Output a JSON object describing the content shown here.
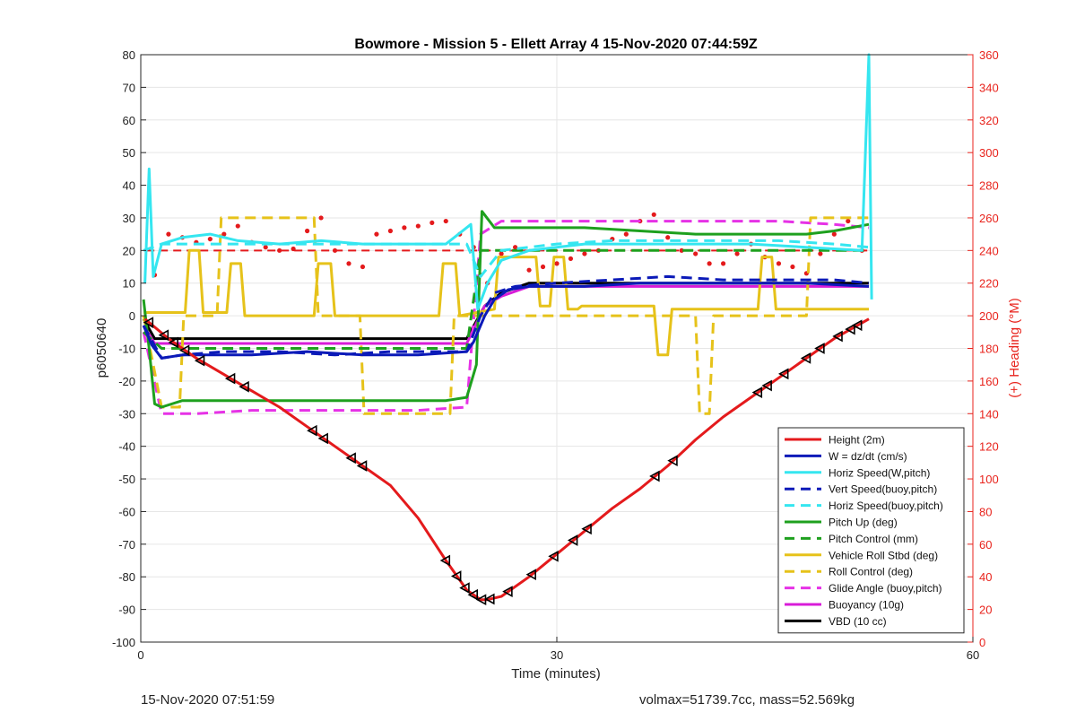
{
  "chart_data": {
    "type": "line",
    "title": "Bowmore - Mission 5 - Ellett Array 4 15-Nov-2020 07:44:59Z",
    "xlabel": "Time (minutes)",
    "ylabel": "p6050640",
    "ylabel_right": "(+) Heading (°M)",
    "xlim": [
      0,
      60
    ],
    "ylim": [
      -100,
      80
    ],
    "ylim_right": [
      0,
      360
    ],
    "xticks": [
      0,
      30,
      60
    ],
    "yticks": [
      -100,
      -90,
      -80,
      -70,
      -60,
      -50,
      -40,
      -30,
      -20,
      -10,
      0,
      10,
      20,
      30,
      40,
      50,
      60,
      70,
      80
    ],
    "yticks_right": [
      0,
      20,
      40,
      60,
      80,
      100,
      120,
      140,
      160,
      180,
      200,
      220,
      240,
      260,
      280,
      300,
      320,
      340,
      360
    ],
    "grid": true,
    "legend_position": "lower-right",
    "colors": {
      "axis_right": "#e8231c"
    },
    "series": [
      {
        "name": "Height (2m)",
        "color": "#e41a1c",
        "style": "solid",
        "x": [
          0.3,
          2,
          4,
          6,
          8,
          10,
          12,
          14,
          16,
          18,
          20,
          22,
          23.5,
          24.5,
          25,
          26,
          28,
          30,
          32,
          34,
          36,
          38,
          40,
          42,
          44,
          46,
          48,
          50,
          52.5
        ],
        "y": [
          -1,
          -7,
          -13,
          -18,
          -23,
          -28,
          -34,
          -40,
          -46,
          -52,
          -62,
          -75,
          -84,
          -87,
          -87,
          -86,
          -80,
          -73,
          -66,
          -59,
          -53,
          -46,
          -38,
          -31,
          -25,
          -19,
          -13,
          -7,
          -1
        ]
      },
      {
        "name": "W = dz/dt (cm/s)",
        "color": "#0b1ab8",
        "style": "solid",
        "x": [
          0.2,
          0.8,
          1.5,
          3,
          5,
          8,
          12,
          16,
          20,
          23.5,
          24,
          24.8,
          25.5,
          26.5,
          28,
          32,
          36,
          40,
          44,
          48,
          52.5
        ],
        "y": [
          -3,
          -9,
          -13,
          -12,
          -12,
          -12,
          -11,
          -12,
          -12,
          -11,
          -8,
          0,
          5,
          8,
          9,
          9,
          10,
          10,
          10,
          10,
          9
        ]
      },
      {
        "name": "Horiz Speed(W,pitch)",
        "color": "#35e6f0",
        "style": "solid",
        "x": [
          0.3,
          0.6,
          0.9,
          1.5,
          3,
          5,
          7,
          10,
          13,
          16,
          19,
          22,
          23.8,
          24.3,
          25,
          26,
          28,
          32,
          36,
          40,
          44,
          48,
          52,
          52.5,
          52.7
        ],
        "y": [
          10,
          45,
          12,
          22,
          24,
          25,
          23,
          22,
          23,
          22,
          22,
          22,
          28,
          2,
          10,
          17,
          20,
          22,
          22,
          22,
          22,
          21,
          20,
          80,
          5
        ]
      },
      {
        "name": "Vert Speed(buoy,pitch)",
        "color": "#0b1ab8",
        "style": "dashed",
        "x": [
          0.2,
          1.5,
          3,
          6,
          10,
          14,
          18,
          22,
          23.5,
          24.5,
          25.5,
          27,
          30,
          34,
          38,
          42,
          46,
          50,
          52.5
        ],
        "y": [
          -3,
          -13,
          -12,
          -11,
          -11,
          -12,
          -11,
          -11,
          -11,
          0,
          7,
          9,
          10,
          11,
          12,
          11,
          11,
          11,
          10
        ]
      },
      {
        "name": "Horiz Speed(buoy,pitch)",
        "color": "#35e6f0",
        "style": "dashed",
        "x": [
          0.2,
          1.5,
          4,
          8,
          12,
          16,
          20,
          23.5,
          24.5,
          26,
          30,
          34,
          38,
          42,
          46,
          50,
          52.5
        ],
        "y": [
          20,
          22,
          22,
          22,
          22,
          22,
          22,
          22,
          12,
          20,
          22,
          23,
          23,
          23,
          23,
          22,
          21
        ]
      },
      {
        "name": "Pitch Up (deg)",
        "color": "#1ea01e",
        "style": "solid",
        "x": [
          0.2,
          0.6,
          1,
          1.5,
          3,
          6,
          10,
          14,
          18,
          22,
          23.5,
          24.2,
          24.6,
          25.5,
          28,
          32,
          36,
          40,
          44,
          48,
          50,
          52.5
        ],
        "y": [
          5,
          -10,
          -27,
          -28,
          -26,
          -26,
          -26,
          -26,
          -26,
          -26,
          -25,
          -15,
          32,
          27,
          27,
          27,
          26,
          25,
          25,
          25,
          26,
          28
        ]
      },
      {
        "name": "Pitch Control (mm)",
        "color": "#1ea01e",
        "style": "dashed",
        "x": [
          0.2,
          1.5,
          5,
          10,
          15,
          20,
          23.5,
          24.5,
          30,
          40,
          52.5
        ],
        "y": [
          -5,
          -10,
          -10,
          -10,
          -10,
          -10,
          -10,
          20,
          20,
          20,
          20
        ]
      },
      {
        "name": "Vehicle Roll Stbd (deg)",
        "color": "#e6c21a",
        "style": "solid",
        "x": [
          0.2,
          3.2,
          3.5,
          4.2,
          4.5,
          6.2,
          6.5,
          7.2,
          7.5,
          12.5,
          12.8,
          13.7,
          14,
          21.5,
          21.8,
          22.7,
          23,
          25.5,
          25.8,
          28.5,
          28.8,
          29.5,
          29.8,
          30.5,
          30.8,
          31.5,
          31.8,
          37,
          37.3,
          38,
          38.3,
          44.5,
          44.8,
          45.5,
          45.8,
          52.5
        ],
        "y": [
          1,
          1,
          20,
          20,
          1,
          1,
          16,
          16,
          0,
          0,
          16,
          16,
          0,
          0,
          16,
          16,
          0,
          2,
          18,
          18,
          3,
          3,
          18,
          18,
          2,
          2,
          3,
          3,
          -12,
          -12,
          2,
          2,
          18,
          18,
          2,
          2
        ]
      },
      {
        "name": "Roll Control (deg)",
        "color": "#e6c21a",
        "style": "dashed",
        "x": [
          0.2,
          1.5,
          2.8,
          3.1,
          5.5,
          5.8,
          12.5,
          12.8,
          15.8,
          16.1,
          22.3,
          22.6,
          25.5,
          28,
          31.5,
          40,
          40.3,
          41,
          41.3,
          48,
          48.3,
          52.5
        ],
        "y": [
          0,
          -28,
          -28,
          0,
          0,
          30,
          30,
          0,
          0,
          -30,
          -30,
          0,
          0,
          0,
          0,
          0,
          -30,
          -30,
          0,
          0,
          30,
          30
        ]
      },
      {
        "name": "Glide Angle (buoy,pitch)",
        "color": "#e632e6",
        "style": "dashed",
        "x": [
          0.2,
          1.5,
          4,
          8,
          12,
          16,
          20,
          23.5,
          24.5,
          26,
          30,
          34,
          38,
          42,
          46,
          50,
          52.5
        ],
        "y": [
          -5,
          -30,
          -30,
          -29,
          -29,
          -29,
          -29,
          -28,
          25,
          29,
          29,
          29,
          29,
          29,
          29,
          28,
          27
        ]
      },
      {
        "name": "Buoyancy (10g)",
        "color": "#d81cd8",
        "style": "solid",
        "x": [
          0.2,
          1,
          5,
          10,
          15,
          20,
          23.5,
          24.8,
          26,
          28,
          40,
          52.5
        ],
        "y": [
          -3,
          -8.5,
          -8.5,
          -8.5,
          -8.5,
          -8.5,
          -8.5,
          3,
          6,
          9,
          9,
          9
        ]
      },
      {
        "name": "VBD (10 cc)",
        "color": "#000000",
        "style": "solid",
        "x": [
          0.2,
          1,
          5,
          10,
          15,
          20,
          23.5,
          24.8,
          26,
          28,
          40,
          52.5
        ],
        "y": [
          -1,
          -7,
          -7,
          -7,
          -7,
          -7,
          -7,
          3,
          7,
          10,
          10,
          10
        ]
      }
    ],
    "heading": {
      "name": "Heading",
      "axis": "right",
      "color": "#e41a1c",
      "reference_value": 240,
      "x": [
        1,
        2,
        3,
        4,
        5,
        6,
        7,
        8,
        9,
        10,
        11,
        12,
        13,
        14,
        15,
        16,
        17,
        18,
        19,
        20,
        21,
        22,
        23,
        24,
        24.5,
        25,
        26,
        27,
        28,
        29,
        30,
        31,
        32,
        33,
        34,
        35,
        36,
        37,
        38,
        39,
        40,
        41,
        42,
        43,
        44,
        45,
        46,
        47,
        48,
        49,
        50,
        51,
        52
      ],
      "y": [
        225,
        250,
        248,
        245,
        247,
        250,
        255,
        245,
        242,
        240,
        241,
        252,
        260,
        240,
        232,
        230,
        250,
        252,
        254,
        255,
        257,
        258,
        250,
        242,
        225,
        220,
        238,
        242,
        228,
        230,
        232,
        235,
        238,
        240,
        247,
        250,
        258,
        262,
        248,
        240,
        238,
        232,
        232,
        238,
        244,
        236,
        232,
        230,
        226,
        238,
        250,
        258,
        240
      ]
    },
    "markers": {
      "symbol": "triangle-left",
      "color": "#000000",
      "x": [
        0.6,
        1.7,
        2.4,
        3.2,
        4.3,
        6.5,
        7.5,
        12.4,
        13.2,
        15.2,
        16.0,
        22.0,
        22.8,
        23.4,
        24.0,
        24.6,
        25.2,
        26.5,
        28.2,
        29.8,
        31.2,
        32.2,
        37.1,
        38.4,
        44.5,
        45.2,
        46.4,
        48.0,
        49.0,
        50.3,
        51.2,
        51.7
      ]
    },
    "footer": {
      "timestamp": "15-Nov-2020 07:51:59",
      "stats": "volmax=51739.7cc, mass=52.569kg"
    }
  }
}
